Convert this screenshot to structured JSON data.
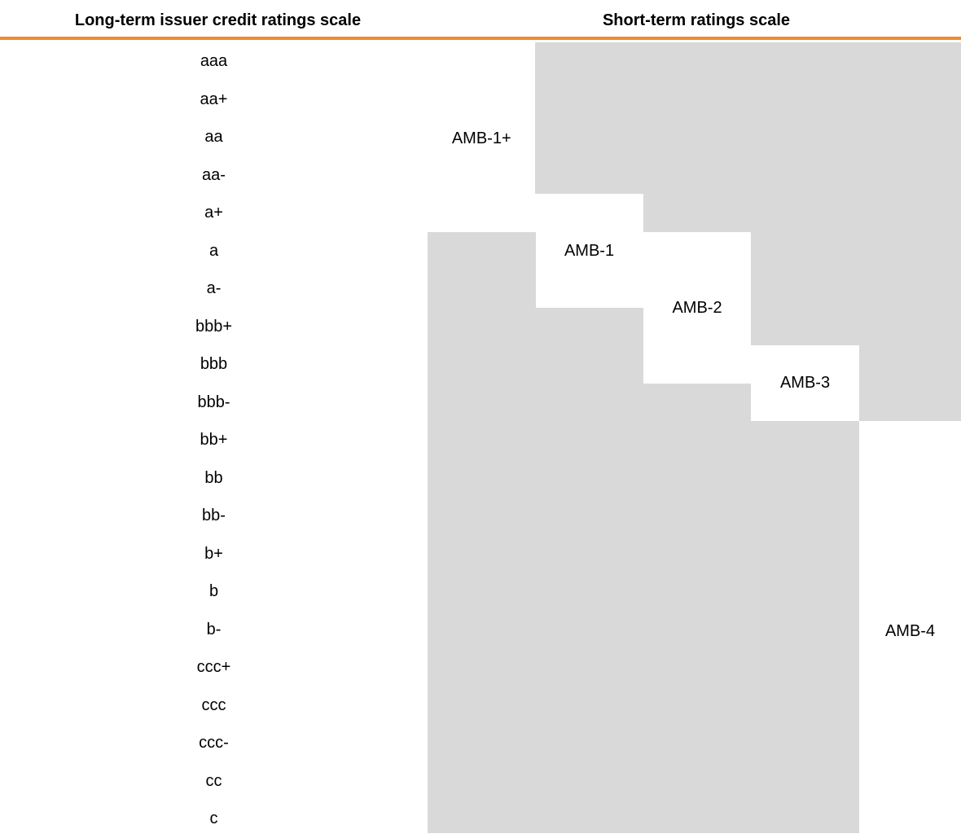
{
  "header": {
    "long_term": "Long-term issuer credit ratings scale",
    "short_term": "Short-term ratings scale"
  },
  "long_term": [
    "aaa",
    "aa+",
    "aa",
    "aa-",
    "a+",
    "a",
    "a-",
    "bbb+",
    "bbb",
    "bbb-",
    "bb+",
    "bb",
    "bb-",
    "b+",
    "b",
    "b-",
    "ccc+",
    "ccc",
    "ccc-",
    "cc",
    "c"
  ],
  "short_term": [
    "AMB-1+",
    "AMB-1",
    "AMB-2",
    "AMB-3",
    "AMB-4"
  ]
}
